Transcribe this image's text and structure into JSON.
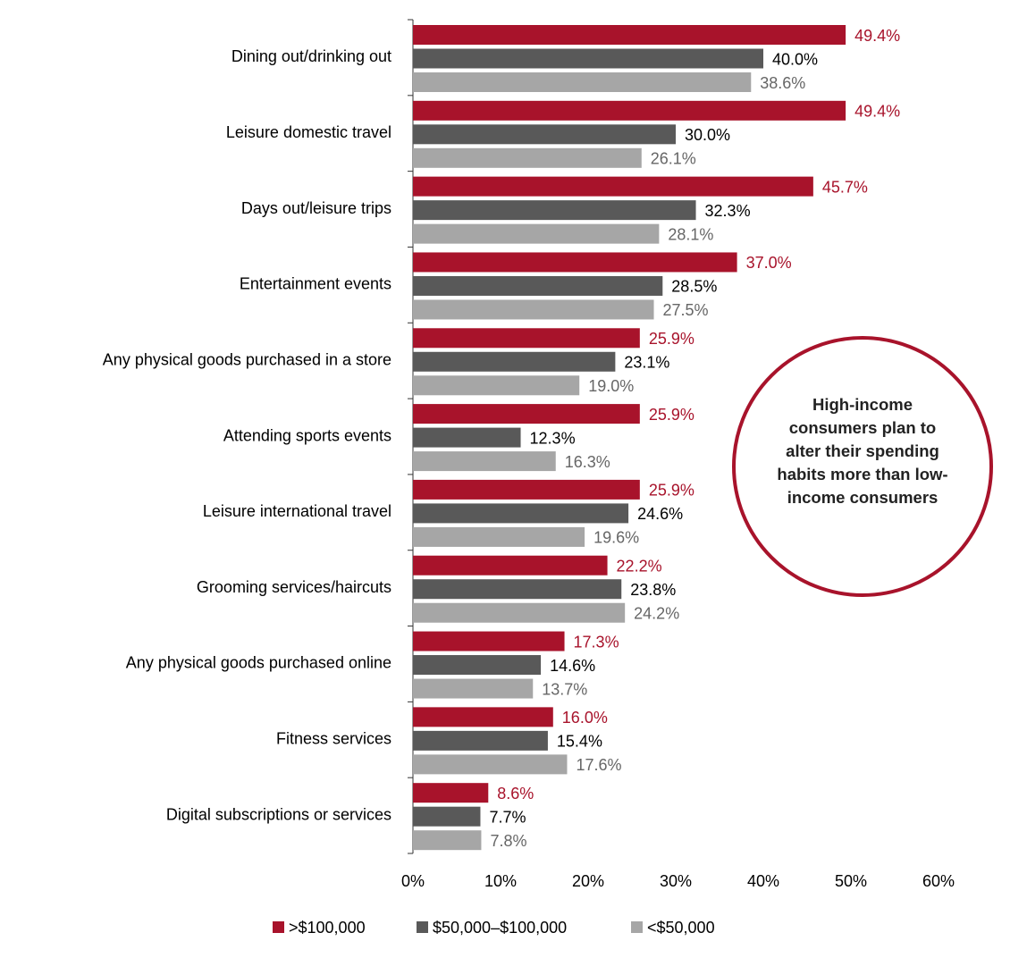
{
  "chart_data": {
    "type": "bar",
    "orientation": "horizontal",
    "categories": [
      "Dining out/drinking out",
      "Leisure domestic travel",
      "Days out/leisure trips",
      "Entertainment events",
      "Any physical goods purchased in a store",
      "Attending sports events",
      "Leisure international travel",
      "Grooming services/haircuts",
      "Any physical goods purchased online",
      "Fitness services",
      "Digital subscriptions or services"
    ],
    "series": [
      {
        "name": ">$100,000",
        "color": "#a8132b",
        "label_color": "#a8132b",
        "values": [
          49.4,
          49.4,
          45.7,
          37.0,
          25.9,
          25.9,
          25.9,
          22.2,
          17.3,
          16.0,
          8.6
        ],
        "value_labels": [
          "49.4%",
          "49.4%",
          "45.7%",
          "37.0%",
          "25.9%",
          "25.9%",
          "25.9%",
          "22.2%",
          "17.3%",
          "16.0%",
          "8.6%"
        ]
      },
      {
        "name": "$50,000–$100,000",
        "color": "#595959",
        "label_color": "#000000",
        "values": [
          40.0,
          30.0,
          32.3,
          28.5,
          23.1,
          12.3,
          24.6,
          23.8,
          14.6,
          15.4,
          7.7
        ],
        "value_labels": [
          "40.0%",
          "30.0%",
          "32.3%",
          "28.5%",
          "23.1%",
          "12.3%",
          "24.6%",
          "23.8%",
          "14.6%",
          "15.4%",
          "7.7%"
        ]
      },
      {
        "name": "<$50,000",
        "color": "#a6a6a6",
        "label_color": "#666666",
        "values": [
          38.6,
          26.1,
          28.1,
          27.5,
          19.0,
          16.3,
          19.6,
          24.2,
          13.7,
          17.6,
          7.8
        ],
        "value_labels": [
          "38.6%",
          "26.1%",
          "28.1%",
          "27.5%",
          "19.0%",
          "16.3%",
          "19.6%",
          "24.2%",
          "13.7%",
          "17.6%",
          "7.8%"
        ]
      }
    ],
    "xlim": [
      0,
      60
    ],
    "xticks": [
      {
        "value": 0,
        "label": "0%"
      },
      {
        "value": 10,
        "label": "10%"
      },
      {
        "value": 20,
        "label": "20%"
      },
      {
        "value": 30,
        "label": "30%"
      },
      {
        "value": 40,
        "label": "40%"
      },
      {
        "value": 50,
        "label": "50%"
      },
      {
        "value": 60,
        "label": "60%"
      }
    ],
    "grid": false,
    "legend": "bottom",
    "annotation": "High-income consumers plan to alter their spending habits more than low-income consumers"
  }
}
